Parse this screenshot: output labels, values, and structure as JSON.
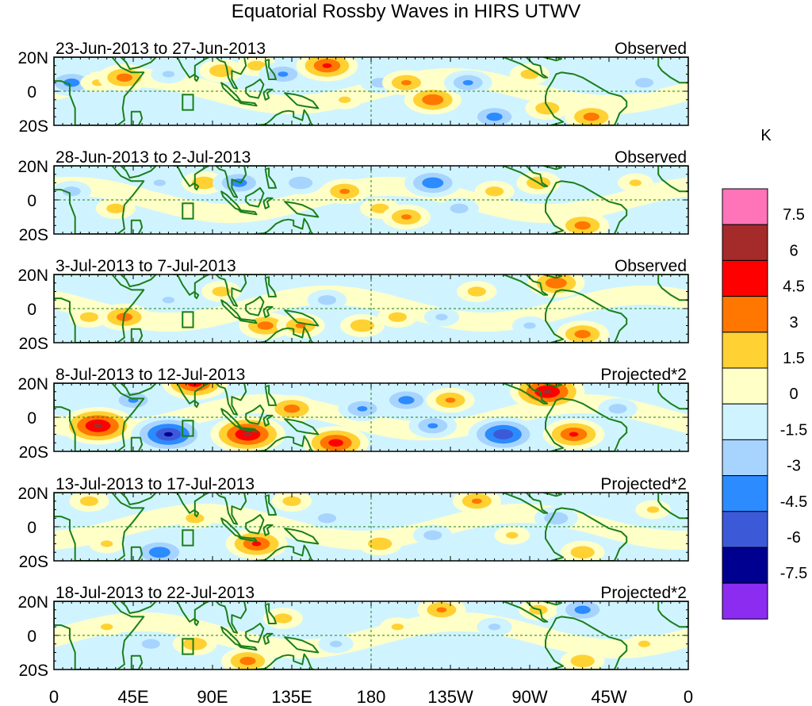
{
  "title": "Equatorial Rossby Waves in HIRS UTWV",
  "colorbar": {
    "unit": "K",
    "levels": [
      "7.5",
      "6",
      "4.5",
      "3",
      "1.5",
      "0",
      "-1.5",
      "-3",
      "-4.5",
      "-6",
      "-7.5"
    ],
    "colors": [
      "#ff73b8",
      "#a52a2a",
      "#ff0000",
      "#ff7700",
      "#ffd133",
      "#ffffc8",
      "#d0f4ff",
      "#a7d4ff",
      "#2b8bff",
      "#3c5ad8",
      "#000090",
      "#8b2cf0"
    ]
  },
  "axes": {
    "lat_labels": [
      "20N",
      "0",
      "20S"
    ],
    "lon_labels": [
      "0",
      "45E",
      "90E",
      "135E",
      "180",
      "135W",
      "90W",
      "45W",
      "0"
    ]
  },
  "panels": [
    {
      "dates": "23-Jun-2013 to 27-Jun-2013",
      "type": "Observed"
    },
    {
      "dates": "28-Jun-2013 to 2-Jul-2013",
      "type": "Observed"
    },
    {
      "dates": "3-Jul-2013 to 7-Jul-2013",
      "type": "Observed"
    },
    {
      "dates": "8-Jul-2013 to 12-Jul-2013",
      "type": "Projected*2"
    },
    {
      "dates": "13-Jul-2013 to 17-Jul-2013",
      "type": "Projected*2"
    },
    {
      "dates": "18-Jul-2013 to 22-Jul-2013",
      "type": "Projected*2"
    }
  ],
  "anomalies": [
    [
      {
        "lon": 10,
        "lat": 5,
        "v": -3.5
      },
      {
        "lon": 25,
        "lat": 5,
        "v": 1.5
      },
      {
        "lon": 40,
        "lat": 8,
        "v": 3.5
      },
      {
        "lon": 65,
        "lat": 10,
        "v": -1.5
      },
      {
        "lon": 95,
        "lat": 12,
        "v": 2.5
      },
      {
        "lon": 115,
        "lat": 15,
        "v": 2.0
      },
      {
        "lon": 130,
        "lat": 10,
        "v": -3.0
      },
      {
        "lon": 155,
        "lat": 15,
        "v": 4.5
      },
      {
        "lon": 165,
        "lat": -5,
        "v": 1.5
      },
      {
        "lon": 185,
        "lat": 5,
        "v": -2.0
      },
      {
        "lon": 200,
        "lat": 5,
        "v": 3.0
      },
      {
        "lon": 215,
        "lat": -5,
        "v": 4.0
      },
      {
        "lon": 235,
        "lat": 5,
        "v": -3.0
      },
      {
        "lon": 250,
        "lat": -15,
        "v": -3.5
      },
      {
        "lon": 270,
        "lat": 10,
        "v": 2.0
      },
      {
        "lon": 280,
        "lat": -10,
        "v": 2.5
      },
      {
        "lon": 305,
        "lat": -15,
        "v": 3.5
      },
      {
        "lon": 335,
        "lat": 5,
        "v": -2.0
      }
    ],
    [
      {
        "lon": 10,
        "lat": 5,
        "v": -2.0
      },
      {
        "lon": 35,
        "lat": -5,
        "v": 2.0
      },
      {
        "lon": 60,
        "lat": 10,
        "v": -1.5
      },
      {
        "lon": 85,
        "lat": 10,
        "v": 2.5
      },
      {
        "lon": 105,
        "lat": 10,
        "v": -3.5
      },
      {
        "lon": 140,
        "lat": 10,
        "v": -2.5
      },
      {
        "lon": 165,
        "lat": 5,
        "v": 3.0
      },
      {
        "lon": 185,
        "lat": -5,
        "v": 2.0
      },
      {
        "lon": 200,
        "lat": -10,
        "v": 3.0
      },
      {
        "lon": 215,
        "lat": 10,
        "v": -4.0
      },
      {
        "lon": 230,
        "lat": -5,
        "v": -2.0
      },
      {
        "lon": 250,
        "lat": 5,
        "v": 2.0
      },
      {
        "lon": 275,
        "lat": 10,
        "v": 2.5
      },
      {
        "lon": 300,
        "lat": -15,
        "v": 3.5
      },
      {
        "lon": 330,
        "lat": 10,
        "v": 1.5
      }
    ],
    [
      {
        "lon": 20,
        "lat": -5,
        "v": 2.0
      },
      {
        "lon": 40,
        "lat": -5,
        "v": 3.5
      },
      {
        "lon": 65,
        "lat": 5,
        "v": -1.5
      },
      {
        "lon": 95,
        "lat": 10,
        "v": 2.0
      },
      {
        "lon": 120,
        "lat": -10,
        "v": 3.5
      },
      {
        "lon": 140,
        "lat": -10,
        "v": 3.0
      },
      {
        "lon": 155,
        "lat": 5,
        "v": -2.0
      },
      {
        "lon": 175,
        "lat": -10,
        "v": 2.5
      },
      {
        "lon": 195,
        "lat": -5,
        "v": 2.0
      },
      {
        "lon": 220,
        "lat": -5,
        "v": -1.5
      },
      {
        "lon": 240,
        "lat": 10,
        "v": 2.0
      },
      {
        "lon": 285,
        "lat": 15,
        "v": 4.0
      },
      {
        "lon": 300,
        "lat": -15,
        "v": 3.5
      },
      {
        "lon": 270,
        "lat": -10,
        "v": -1.5
      }
    ],
    [
      {
        "lon": 25,
        "lat": -5,
        "v": 6.0
      },
      {
        "lon": 45,
        "lat": 10,
        "v": -3.0
      },
      {
        "lon": 65,
        "lat": -10,
        "v": -6.0
      },
      {
        "lon": 80,
        "lat": 20,
        "v": 5.0
      },
      {
        "lon": 110,
        "lat": -10,
        "v": 6.0
      },
      {
        "lon": 135,
        "lat": 5,
        "v": 3.5
      },
      {
        "lon": 160,
        "lat": -15,
        "v": 5.0
      },
      {
        "lon": 175,
        "lat": 5,
        "v": -3.0
      },
      {
        "lon": 200,
        "lat": 10,
        "v": -3.5
      },
      {
        "lon": 215,
        "lat": -5,
        "v": -3.0
      },
      {
        "lon": 225,
        "lat": 10,
        "v": 3.0
      },
      {
        "lon": 255,
        "lat": -10,
        "v": -5.5
      },
      {
        "lon": 280,
        "lat": 15,
        "v": 6.0
      },
      {
        "lon": 295,
        "lat": -10,
        "v": 4.5
      },
      {
        "lon": 320,
        "lat": 5,
        "v": -2.0
      }
    ],
    [
      {
        "lon": 20,
        "lat": 15,
        "v": 2.0
      },
      {
        "lon": 30,
        "lat": -10,
        "v": 1.5
      },
      {
        "lon": 60,
        "lat": -15,
        "v": -4.0
      },
      {
        "lon": 80,
        "lat": 5,
        "v": 2.0
      },
      {
        "lon": 115,
        "lat": -10,
        "v": 4.5
      },
      {
        "lon": 135,
        "lat": 15,
        "v": 2.0
      },
      {
        "lon": 155,
        "lat": 5,
        "v": -2.0
      },
      {
        "lon": 185,
        "lat": -10,
        "v": 2.5
      },
      {
        "lon": 215,
        "lat": -5,
        "v": -2.0
      },
      {
        "lon": 240,
        "lat": 15,
        "v": 3.0
      },
      {
        "lon": 260,
        "lat": -5,
        "v": 1.5
      },
      {
        "lon": 285,
        "lat": 5,
        "v": -2.5
      },
      {
        "lon": 300,
        "lat": -15,
        "v": 2.5
      },
      {
        "lon": 340,
        "lat": 10,
        "v": 1.5
      }
    ],
    [
      {
        "lon": 30,
        "lat": 5,
        "v": 1.5
      },
      {
        "lon": 55,
        "lat": -5,
        "v": -2.0
      },
      {
        "lon": 80,
        "lat": -5,
        "v": 2.5
      },
      {
        "lon": 110,
        "lat": -15,
        "v": 3.5
      },
      {
        "lon": 130,
        "lat": 10,
        "v": 2.0
      },
      {
        "lon": 160,
        "lat": -5,
        "v": -1.5
      },
      {
        "lon": 195,
        "lat": 5,
        "v": 1.5
      },
      {
        "lon": 220,
        "lat": 15,
        "v": 3.0
      },
      {
        "lon": 250,
        "lat": 5,
        "v": -1.5
      },
      {
        "lon": 275,
        "lat": 15,
        "v": 2.0
      },
      {
        "lon": 300,
        "lat": 15,
        "v": -3.5
      },
      {
        "lon": 300,
        "lat": -15,
        "v": 2.5
      },
      {
        "lon": 335,
        "lat": -5,
        "v": 1.5
      }
    ]
  ]
}
